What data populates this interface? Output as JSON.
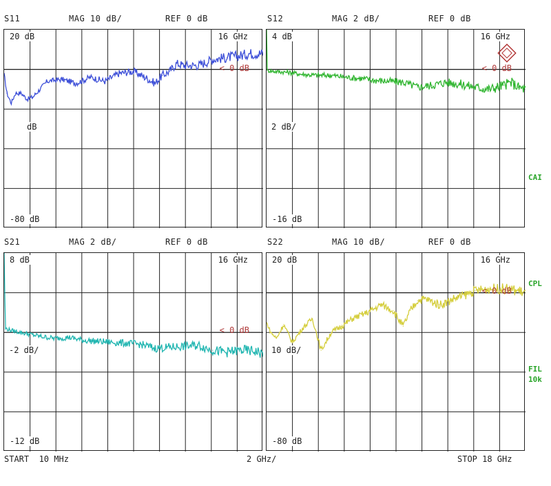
{
  "colors": {
    "s11": "#3d4fd8",
    "s12": "#2fb52f",
    "s21": "#1fb5b0",
    "s22": "#d4cd3a",
    "ref": "#b03a3a",
    "grid": "#222222"
  },
  "side_labels": {
    "cal": "CAI",
    "cpl": "CPL",
    "fil": "FIL",
    "fil_bw": "10k"
  },
  "footer": {
    "start": "START  10 MHz",
    "div": "2 GHz/",
    "stop": "STOP 18 GHz"
  },
  "chart_data": [
    {
      "type": "line",
      "id": "s11",
      "param": "S11",
      "mag": "MAG 10 dB/",
      "ref": "REF 0 dB",
      "top_label": "20 dB",
      "bottom_label": "-80 dB",
      "freq_label": "16 GHz",
      "ref_marker": "0 dB",
      "mid_label": "dB",
      "ylim": [
        -80,
        20
      ],
      "xlim": [
        0.01,
        18
      ],
      "series": [
        {
          "x": [
            0.01,
            0.2,
            0.5,
            0.8,
            1.2,
            1.6,
            2.0,
            3.0,
            4.0,
            5.0,
            6.0,
            7.0,
            8.0,
            9.0,
            9.8,
            10.5,
            11.0,
            11.5,
            12.0,
            12.5,
            13.5,
            14.5,
            15.5,
            16.5,
            17.0
          ],
          "values": [
            -2,
            -12,
            -17,
            -12,
            -12,
            -15,
            -14,
            -6,
            -5,
            -7,
            -4,
            -6,
            -2,
            -1,
            -4,
            -7,
            -3,
            -1,
            3,
            2,
            2,
            5,
            6,
            7,
            8
          ]
        }
      ]
    },
    {
      "type": "line",
      "id": "s12",
      "param": "S12",
      "mag": "MAG 2 dB/",
      "ref": "REF 0 dB",
      "top_label": "4 dB",
      "bottom_label": "-16 dB",
      "freq_label": "16 GHz",
      "ref_marker": "0 dB",
      "mid_label": "2 dB/",
      "ylim": [
        -16,
        4
      ],
      "xlim": [
        0.01,
        18
      ],
      "series": [
        {
          "x": [
            0.01,
            0.05,
            0.5,
            1.5,
            2.5,
            3.5,
            4.5,
            5.5,
            6.5,
            7.5,
            8.5,
            9.5,
            10.5,
            11.5,
            12.5,
            13.5,
            14.5,
            15.5,
            16.5,
            17.0,
            17.5,
            18.0
          ],
          "values": [
            4,
            -0.1,
            -0.2,
            -0.3,
            -0.5,
            -0.6,
            -0.6,
            -0.8,
            -0.9,
            -1.1,
            -1.2,
            -1.3,
            -1.8,
            -1.6,
            -1.3,
            -1.5,
            -1.8,
            -2.0,
            -1.6,
            -1.3,
            -1.8,
            -2.0
          ]
        }
      ]
    },
    {
      "type": "line",
      "id": "s21",
      "param": "S21",
      "mag": "MAG 2 dB/",
      "ref": "REF 0 dB",
      "top_label": "8 dB",
      "bottom_label": "-12 dB",
      "freq_label": "16 GHz",
      "ref_marker": "0 dB",
      "mid_label": "-2 dB/",
      "ylim": [
        -12,
        8
      ],
      "xlim": [
        0.01,
        18
      ],
      "series": [
        {
          "x": [
            0.01,
            0.1,
            0.5,
            1.5,
            2.5,
            3.5,
            4.5,
            5.5,
            6.5,
            7.5,
            8.5,
            9.5,
            10.5,
            11.5,
            12.5,
            13.5,
            14.5,
            15.5,
            16.5,
            17.5,
            18.0
          ],
          "values": [
            8,
            0.4,
            0.2,
            -0.1,
            -0.4,
            -0.6,
            -0.5,
            -0.8,
            -0.9,
            -1.0,
            -1.1,
            -1.2,
            -1.6,
            -1.5,
            -1.4,
            -1.3,
            -1.8,
            -2.0,
            -1.8,
            -1.9,
            -2.2
          ]
        }
      ]
    },
    {
      "type": "line",
      "id": "s22",
      "param": "S22",
      "mag": "MAG 10 dB/",
      "ref": "REF 0 dB",
      "top_label": "20 dB",
      "bottom_label": "-80 dB",
      "freq_label": "16 GHz",
      "ref_marker": "0 dB",
      "mid_label": "10 dB/",
      "ylim": [
        -80,
        20
      ],
      "xlim": [
        0.01,
        18
      ],
      "series": [
        {
          "x": [
            0.01,
            0.3,
            0.7,
            1.2,
            1.8,
            2.5,
            3.2,
            3.8,
            4.5,
            5.2,
            6.0,
            7.0,
            8.0,
            8.8,
            9.5,
            10.0,
            10.5,
            11.0,
            12.0,
            12.5,
            13.0,
            13.5,
            14.5,
            15.5,
            16.5,
            17.5,
            18.0
          ],
          "values": [
            -15,
            -20,
            -23,
            -16,
            -25,
            -18,
            -13,
            -29,
            -20,
            -17,
            -13,
            -10,
            -6,
            -9,
            -17,
            -9,
            -4,
            -3,
            -6,
            -5,
            -3,
            -2,
            1,
            2,
            2,
            1,
            0
          ]
        }
      ]
    }
  ]
}
